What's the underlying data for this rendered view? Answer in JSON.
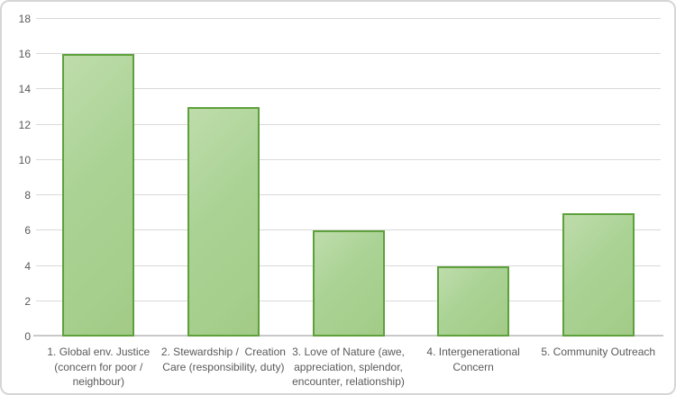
{
  "chart_data": {
    "type": "bar",
    "title": "",
    "xlabel": "",
    "ylabel": "",
    "categories": [
      "1. Global env. Justice (concern for poor / neighbour)",
      "2. Stewardship /  Creation Care (responsibility, duty)",
      "3. Love of Nature (awe, appreciation, splendor, encounter, relationship)",
      "4. Intergenerational Concern",
      "5. Community Outreach"
    ],
    "category_label_lines": [
      [
        "1. Global env. Justice",
        "(concern for poor /",
        "neighbour)"
      ],
      [
        "2. Stewardship /  Creation",
        "Care (responsibility, duty)"
      ],
      [
        "3. Love of Nature (awe,",
        "appreciation, splendor,",
        "encounter, relationship)"
      ],
      [
        "4. Intergenerational",
        "Concern"
      ],
      [
        "5. Community Outreach"
      ]
    ],
    "values": [
      16,
      13,
      6,
      4,
      7
    ],
    "ylim": [
      0,
      18
    ],
    "yticks": [
      0,
      2,
      4,
      6,
      8,
      10,
      12,
      14,
      16,
      18
    ],
    "grid": true,
    "legend_position": "none"
  },
  "colors": {
    "bar_fill_light": "#bedcab",
    "bar_fill": "#a6ce8c",
    "bar_border": "#5da03c",
    "gridline": "#d9d9d9",
    "axis_line": "#c9c9c9",
    "tick_label": "#595959",
    "frame_border": "#d6d6d6",
    "background": "#ffffff"
  }
}
